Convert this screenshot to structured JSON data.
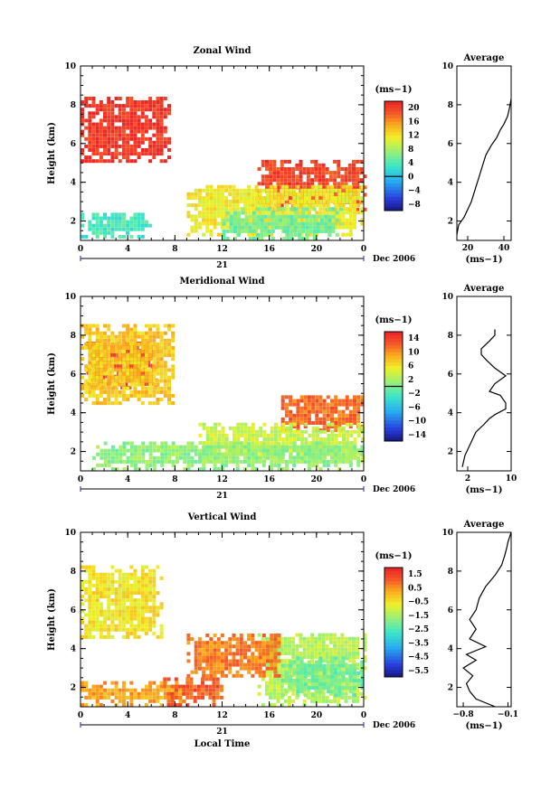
{
  "panels": [
    {
      "id": "zonal",
      "title": "Zonal Wind",
      "ylabel": "Height (km)",
      "xlim": [
        0,
        24
      ],
      "ylim": [
        1,
        10
      ],
      "xticks": [
        "0",
        "4",
        "8",
        "12",
        "16",
        "20",
        "0"
      ],
      "yticks": [
        "2",
        "4",
        "6",
        "8",
        "10"
      ],
      "date_axis": {
        "day": "21",
        "month_year": "Dec 2006"
      },
      "colorbar": {
        "unit": "(ms−1)",
        "labels": [
          "20",
          "16",
          "12",
          "8",
          "4",
          "0",
          "−4",
          "−8"
        ],
        "vmin": -10,
        "vmax": 22,
        "zero_line": 0
      },
      "average": {
        "title": "Average",
        "xlim": [
          14,
          44
        ],
        "xticks": [
          "20",
          "40"
        ],
        "yticks": [
          "2",
          "4",
          "6",
          "8",
          "10"
        ],
        "xlabel": "(ms−1)",
        "profile": [
          [
            14,
            1.3
          ],
          [
            15,
            1.8
          ],
          [
            18,
            2.2
          ],
          [
            20,
            2.6
          ],
          [
            22,
            3.0
          ],
          [
            24,
            3.6
          ],
          [
            26,
            4.2
          ],
          [
            28,
            4.8
          ],
          [
            30,
            5.4
          ],
          [
            33,
            5.9
          ],
          [
            36,
            6.3
          ],
          [
            38,
            6.7
          ],
          [
            40,
            7.0
          ],
          [
            42,
            7.4
          ],
          [
            43,
            7.8
          ],
          [
            44,
            8.3
          ]
        ]
      },
      "blobs": [
        {
          "v": 21,
          "x0": 0,
          "x1": 7.5,
          "y0": 5.0,
          "y1": 8.3
        },
        {
          "v": 20,
          "x0": 15,
          "x1": 24,
          "y0": 2.5,
          "y1": 5.0
        },
        {
          "v": 12,
          "x0": 9,
          "x1": 24,
          "y0": 1.2,
          "y1": 3.8
        },
        {
          "v": 6,
          "x0": 12,
          "x1": 22,
          "y0": 1.0,
          "y1": 2.6
        },
        {
          "v": 4,
          "x0": 0,
          "x1": 6,
          "y0": 1.1,
          "y1": 2.4
        }
      ]
    },
    {
      "id": "meridional",
      "title": "Meridional Wind",
      "ylabel": "Height (km)",
      "xlim": [
        0,
        24
      ],
      "ylim": [
        1,
        10
      ],
      "xticks": [
        "0",
        "4",
        "8",
        "12",
        "16",
        "20",
        "0"
      ],
      "yticks": [
        "2",
        "4",
        "6",
        "8",
        "10"
      ],
      "date_axis": {
        "day": "21",
        "month_year": "Dec 2006"
      },
      "colorbar": {
        "unit": "(ms−1)",
        "labels": [
          "14",
          "10",
          "6",
          "2",
          "−2",
          "−6",
          "−10",
          "−14"
        ],
        "vmin": -16,
        "vmax": 16,
        "zero_line": 0
      },
      "average": {
        "title": "Average",
        "xlim": [
          0,
          10
        ],
        "xticks": [
          "2",
          "10"
        ],
        "yticks": [
          "2",
          "4",
          "6",
          "8",
          "10"
        ],
        "xlabel": "(ms−1)",
        "profile": [
          [
            1,
            1.2
          ],
          [
            1.5,
            1.8
          ],
          [
            2.5,
            2.4
          ],
          [
            3.5,
            3.0
          ],
          [
            5,
            3.4
          ],
          [
            6,
            3.7
          ],
          [
            7,
            3.9
          ],
          [
            9,
            4.2
          ],
          [
            9,
            4.5
          ],
          [
            8,
            4.9
          ],
          [
            6,
            5.1
          ],
          [
            7,
            5.5
          ],
          [
            9,
            5.9
          ],
          [
            7,
            6.3
          ],
          [
            5.5,
            6.7
          ],
          [
            4.5,
            7.0
          ],
          [
            4.5,
            7.3
          ],
          [
            6,
            7.7
          ],
          [
            7,
            8.0
          ],
          [
            7,
            8.3
          ]
        ]
      },
      "blobs": [
        {
          "v": 14,
          "x0": 0.5,
          "x1": 6.5,
          "y0": 5.2,
          "y1": 7.6
        },
        {
          "v": 8,
          "x0": 0,
          "x1": 8,
          "y0": 4.4,
          "y1": 8.5
        },
        {
          "v": 12,
          "x0": 17,
          "x1": 24,
          "y0": 3.0,
          "y1": 4.9
        },
        {
          "v": 4,
          "x0": 10,
          "x1": 24,
          "y0": 1.4,
          "y1": 3.4
        },
        {
          "v": 1.5,
          "x0": 1,
          "x1": 24,
          "y0": 1.0,
          "y1": 2.5
        }
      ]
    },
    {
      "id": "vertical",
      "title": "Vertical Wind",
      "ylabel": "Height (km)",
      "xlabel": "Local Time",
      "xlim": [
        0,
        24
      ],
      "ylim": [
        1,
        10
      ],
      "xticks": [
        "0",
        "4",
        "8",
        "12",
        "16",
        "20",
        "0"
      ],
      "yticks": [
        "2",
        "4",
        "6",
        "8",
        "10"
      ],
      "date_axis": {
        "day": "21",
        "month_year": "Dec 2006"
      },
      "colorbar": {
        "unit": "(ms−1)",
        "labels": [
          "1.5",
          "0.5",
          "−0.5",
          "−1.5",
          "−2.5",
          "−3.5",
          "−4.5",
          "−5.5"
        ],
        "vmin": -6,
        "vmax": 2
      },
      "average": {
        "title": "Average",
        "xlim": [
          -0.9,
          -0.05
        ],
        "xticks": [
          "−0.8",
          "−0.1"
        ],
        "yticks": [
          "2",
          "4",
          "6",
          "8",
          "10"
        ],
        "xlabel": "(ms−1)",
        "profile": [
          [
            -0.3,
            1.0
          ],
          [
            -0.6,
            1.4
          ],
          [
            -0.7,
            1.8
          ],
          [
            -0.75,
            2.2
          ],
          [
            -0.65,
            2.6
          ],
          [
            -0.8,
            3.0
          ],
          [
            -0.6,
            3.4
          ],
          [
            -0.75,
            3.7
          ],
          [
            -0.45,
            4.1
          ],
          [
            -0.7,
            4.5
          ],
          [
            -0.6,
            5.0
          ],
          [
            -0.7,
            5.5
          ],
          [
            -0.6,
            6.0
          ],
          [
            -0.55,
            6.6
          ],
          [
            -0.45,
            7.2
          ],
          [
            -0.3,
            7.8
          ],
          [
            -0.2,
            8.3
          ],
          [
            -0.15,
            8.8
          ],
          [
            -0.12,
            9.2
          ],
          [
            -0.1,
            9.5
          ],
          [
            -0.05,
            10.0
          ]
        ]
      },
      "blobs": [
        {
          "v": -0.4,
          "x0": 0,
          "x1": 7,
          "y0": 4.5,
          "y1": 8.2
        },
        {
          "v": 0.4,
          "x0": 0,
          "x1": 9,
          "y0": 1.0,
          "y1": 2.2
        },
        {
          "v": 1.2,
          "x0": 7,
          "x1": 12,
          "y0": 1.0,
          "y1": 2.4
        },
        {
          "v": -1.2,
          "x0": 15,
          "x1": 24,
          "y0": 1.0,
          "y1": 4.8
        },
        {
          "v": -2.0,
          "x0": 17,
          "x1": 24,
          "y0": 1.5,
          "y1": 3.5
        },
        {
          "v": 0.8,
          "x0": 9,
          "x1": 17,
          "y0": 2.5,
          "y1": 4.6
        }
      ]
    }
  ],
  "chart_data": {
    "type": "heatmap",
    "note_axis": "x: local time (h), y: height (km)",
    "series": [
      {
        "name": "Zonal Wind",
        "unit": "ms-1"
      },
      {
        "name": "Meridional Wind",
        "unit": "ms-1"
      },
      {
        "name": "Vertical Wind",
        "unit": "ms-1"
      }
    ]
  }
}
